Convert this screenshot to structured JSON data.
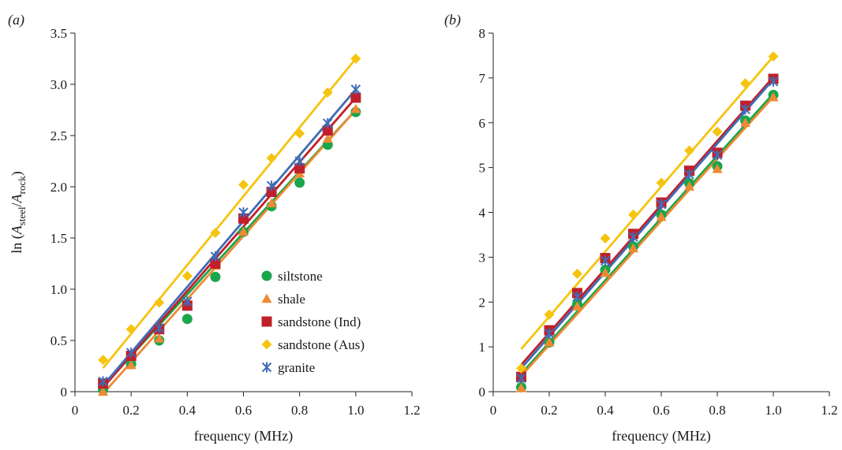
{
  "chart_data": [
    {
      "type": "scatter",
      "panel_label": "(a)",
      "xlabel": "frequency (MHz)",
      "ylabel_prefix": "ln (",
      "ylabel_num": "A",
      "ylabel_num_sub": "steel",
      "ylabel_sep": "/",
      "ylabel_den": "A",
      "ylabel_den_sub": "rock",
      "ylabel_suffix": ")",
      "xlim": [
        0,
        1.2
      ],
      "ylim": [
        0,
        3.5
      ],
      "xticks": [
        0,
        0.2,
        0.4,
        0.6,
        0.8,
        1.0,
        1.2
      ],
      "xtick_labels": [
        "0",
        "0.2",
        "0.4",
        "0.6",
        "0.8",
        "1.0",
        "1.2"
      ],
      "yticks": [
        0,
        0.5,
        1.0,
        1.5,
        2.0,
        2.5,
        3.0,
        3.5
      ],
      "ytick_labels": [
        "0",
        "0.5",
        "1.0",
        "1.5",
        "2.0",
        "2.5",
        "3.0",
        "3.5"
      ],
      "grid": false,
      "legend_position": "lower-right",
      "x": [
        0.1,
        0.2,
        0.3,
        0.4,
        0.5,
        0.6,
        0.7,
        0.8,
        0.9,
        1.0
      ],
      "series": [
        {
          "name": "siltstone",
          "color": "#1aa64a",
          "marker": "circle",
          "values": [
            0.02,
            0.27,
            0.5,
            0.71,
            1.12,
            1.56,
            1.81,
            2.04,
            2.41,
            2.73
          ],
          "fit": [
            0.05,
            2.75
          ]
        },
        {
          "name": "shale",
          "color": "#ee8a35",
          "marker": "triangle",
          "values": [
            0.0,
            0.26,
            0.52,
            0.84,
            1.23,
            1.56,
            1.84,
            2.13,
            2.47,
            2.76
          ],
          "fit": [
            -0.02,
            2.75
          ]
        },
        {
          "name": "sandstone (Ind)",
          "color": "#c0202a",
          "marker": "square",
          "values": [
            0.08,
            0.35,
            0.61,
            0.84,
            1.25,
            1.69,
            1.95,
            2.18,
            2.55,
            2.87
          ],
          "fit": [
            0.04,
            2.87
          ]
        },
        {
          "name": "sandstone (Aus)",
          "color": "#f5c40f",
          "marker": "diamond",
          "values": [
            0.31,
            0.61,
            0.87,
            1.13,
            1.55,
            2.02,
            2.28,
            2.52,
            2.92,
            3.25
          ],
          "fit": [
            0.23,
            3.25
          ]
        },
        {
          "name": "granite",
          "color": "#3f6cb5",
          "marker": "asterisk",
          "values": [
            0.1,
            0.38,
            0.62,
            0.88,
            1.32,
            1.75,
            2.01,
            2.25,
            2.62,
            2.95
          ],
          "fit": [
            0.06,
            2.95
          ]
        }
      ]
    },
    {
      "type": "scatter",
      "panel_label": "(b)",
      "xlabel": "frequency (MHz)",
      "xlim": [
        0,
        1.2
      ],
      "ylim": [
        0,
        8
      ],
      "xticks": [
        0,
        0.2,
        0.4,
        0.6,
        0.8,
        1.0,
        1.2
      ],
      "xtick_labels": [
        "0",
        "0.2",
        "0.4",
        "0.6",
        "0.8",
        "1.0",
        "1.2"
      ],
      "yticks": [
        0,
        1,
        2,
        3,
        4,
        5,
        6,
        7,
        8
      ],
      "ytick_labels": [
        "0",
        "1",
        "2",
        "3",
        "4",
        "5",
        "6",
        "7",
        "8"
      ],
      "grid": false,
      "x": [
        0.1,
        0.2,
        0.3,
        0.4,
        0.5,
        0.6,
        0.7,
        0.8,
        0.9,
        1.0
      ],
      "series": [
        {
          "name": "siltstone",
          "color": "#1aa64a",
          "marker": "circle",
          "values": [
            0.1,
            1.1,
            1.95,
            2.72,
            3.24,
            3.95,
            4.65,
            5.03,
            6.05,
            6.62
          ],
          "fit": [
            0.4,
            6.65
          ]
        },
        {
          "name": "shale",
          "color": "#ee8a35",
          "marker": "triangle",
          "values": [
            0.08,
            1.1,
            1.9,
            2.65,
            3.2,
            3.9,
            4.58,
            4.97,
            6.0,
            6.57
          ],
          "fit": [
            0.35,
            6.58
          ]
        },
        {
          "name": "sandstone (Ind)",
          "color": "#c0202a",
          "marker": "square",
          "values": [
            0.33,
            1.37,
            2.2,
            2.98,
            3.52,
            4.22,
            4.93,
            5.33,
            6.38,
            6.98
          ],
          "fit": [
            0.6,
            7.02
          ]
        },
        {
          "name": "sandstone (Aus)",
          "color": "#f5c40f",
          "marker": "diamond",
          "values": [
            0.52,
            1.72,
            2.63,
            3.42,
            3.95,
            4.66,
            5.38,
            5.8,
            6.88,
            7.48
          ],
          "fit": [
            0.95,
            7.48
          ]
        },
        {
          "name": "granite",
          "color": "#3f6cb5",
          "marker": "asterisk",
          "values": [
            0.3,
            1.3,
            2.12,
            2.92,
            3.45,
            4.18,
            4.85,
            5.28,
            6.3,
            6.92
          ],
          "fit": [
            0.52,
            6.97
          ]
        }
      ]
    }
  ]
}
